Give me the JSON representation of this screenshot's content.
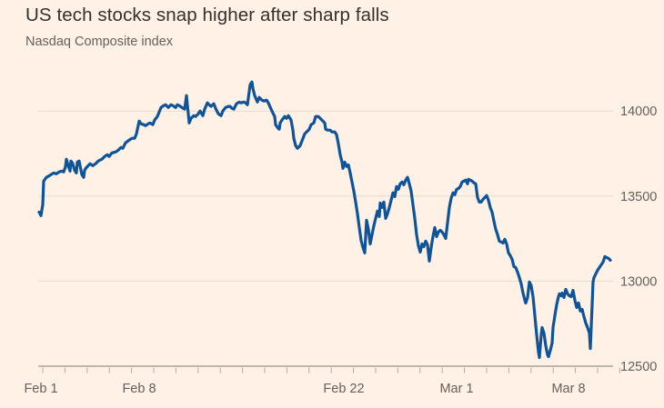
{
  "title": "US tech stocks snap higher after sharp falls",
  "subtitle": "Nasdaq Composite index",
  "colors": {
    "background": "#FFF1E5",
    "line": "#0F5499",
    "title_text": "#33302E",
    "subtitle_text": "#66605C",
    "axis_label": "#66605C",
    "gridline": "#E8DCCF",
    "axis_line": "#A9A198",
    "tick": "#B3AAA0"
  },
  "chart_data": {
    "type": "line",
    "title": "US tech stocks snap higher after sharp falls",
    "subtitle": "Nasdaq Composite index",
    "grid": "horizontal",
    "legend": "none",
    "y_axis_side": "right",
    "ylim": [
      12450,
      14250
    ],
    "y_ticks": [
      12500,
      13000,
      13500,
      14000
    ],
    "x_tick_labels": [
      {
        "label": "Feb 1",
        "xpct": 0.32
      },
      {
        "label": "Feb 8",
        "xpct": 17.52
      },
      {
        "label": "Feb 22",
        "xpct": 53.34
      },
      {
        "label": "Mar 1",
        "xpct": 73.09
      },
      {
        "label": "Mar 8",
        "xpct": 92.68
      }
    ],
    "series": [
      {
        "name": "Nasdaq Composite index",
        "points": [
          [
            0,
            13406
          ],
          [
            0.32,
            13385
          ],
          [
            0.64,
            13449
          ],
          [
            0.8,
            13588
          ],
          [
            1.27,
            13610
          ],
          [
            2.07,
            13626
          ],
          [
            2.55,
            13636
          ],
          [
            3.03,
            13631
          ],
          [
            3.5,
            13642
          ],
          [
            3.98,
            13647
          ],
          [
            4.3,
            13642
          ],
          [
            4.62,
            13674
          ],
          [
            4.78,
            13717
          ],
          [
            5.1,
            13679
          ],
          [
            5.41,
            13647
          ],
          [
            5.57,
            13706
          ],
          [
            5.89,
            13690
          ],
          [
            6.21,
            13652
          ],
          [
            6.53,
            13636
          ],
          [
            6.69,
            13700
          ],
          [
            7.01,
            13706
          ],
          [
            7.17,
            13679
          ],
          [
            7.48,
            13626
          ],
          [
            7.8,
            13610
          ],
          [
            7.96,
            13652
          ],
          [
            8.28,
            13668
          ],
          [
            8.6,
            13679
          ],
          [
            8.92,
            13690
          ],
          [
            9.39,
            13679
          ],
          [
            9.87,
            13690
          ],
          [
            10.35,
            13706
          ],
          [
            10.99,
            13717
          ],
          [
            11.46,
            13733
          ],
          [
            11.94,
            13743
          ],
          [
            12.26,
            13733
          ],
          [
            12.74,
            13754
          ],
          [
            13.38,
            13759
          ],
          [
            13.85,
            13770
          ],
          [
            14.33,
            13786
          ],
          [
            14.65,
            13781
          ],
          [
            15.13,
            13813
          ],
          [
            15.76,
            13829
          ],
          [
            16.24,
            13840
          ],
          [
            16.72,
            13840
          ],
          [
            17.04,
            13866
          ],
          [
            17.52,
            13941
          ],
          [
            17.83,
            13925
          ],
          [
            18.31,
            13920
          ],
          [
            18.63,
            13914
          ],
          [
            19.11,
            13925
          ],
          [
            19.43,
            13930
          ],
          [
            19.9,
            13920
          ],
          [
            20.22,
            13947
          ],
          [
            20.7,
            13968
          ],
          [
            21.34,
            14021
          ],
          [
            21.82,
            14032
          ],
          [
            22.13,
            14037
          ],
          [
            22.61,
            14021
          ],
          [
            23.09,
            14037
          ],
          [
            23.41,
            14032
          ],
          [
            23.89,
            14021
          ],
          [
            24.2,
            14037
          ],
          [
            24.52,
            14032
          ],
          [
            25,
            14021
          ],
          [
            25.48,
            14011
          ],
          [
            25.8,
            14091
          ],
          [
            26.11,
            13984
          ],
          [
            26.27,
            13930
          ],
          [
            26.59,
            13957
          ],
          [
            27.07,
            13973
          ],
          [
            27.39,
            13968
          ],
          [
            27.87,
            13984
          ],
          [
            28.18,
            14000
          ],
          [
            28.66,
            13973
          ],
          [
            28.98,
            14011
          ],
          [
            29.46,
            14048
          ],
          [
            29.78,
            14037
          ],
          [
            30.1,
            14027
          ],
          [
            30.57,
            14043
          ],
          [
            30.89,
            14016
          ],
          [
            31.37,
            13984
          ],
          [
            31.85,
            13973
          ],
          [
            32.17,
            14000
          ],
          [
            32.64,
            14021
          ],
          [
            33.12,
            14027
          ],
          [
            33.44,
            14027
          ],
          [
            33.76,
            14016
          ],
          [
            34.08,
            14011
          ],
          [
            34.55,
            14043
          ],
          [
            35.03,
            14053
          ],
          [
            35.35,
            14048
          ],
          [
            35.83,
            14053
          ],
          [
            36.15,
            14048
          ],
          [
            36.46,
            14037
          ],
          [
            36.94,
            14155
          ],
          [
            37.26,
            14171
          ],
          [
            37.42,
            14134
          ],
          [
            37.74,
            14091
          ],
          [
            38.22,
            14053
          ],
          [
            38.54,
            14080
          ],
          [
            39.01,
            14064
          ],
          [
            39.33,
            14059
          ],
          [
            39.81,
            14064
          ],
          [
            40.13,
            14048
          ],
          [
            40.61,
            14011
          ],
          [
            40.92,
            13989
          ],
          [
            41.24,
            13968
          ],
          [
            41.4,
            13920
          ],
          [
            41.72,
            13904
          ],
          [
            42.04,
            13893
          ],
          [
            42.2,
            13930
          ],
          [
            42.52,
            13947
          ],
          [
            43,
            13968
          ],
          [
            43.31,
            13957
          ],
          [
            43.63,
            13973
          ],
          [
            44.11,
            13947
          ],
          [
            44.43,
            13888
          ],
          [
            44.59,
            13840
          ],
          [
            44.9,
            13797
          ],
          [
            45.22,
            13781
          ],
          [
            45.7,
            13797
          ],
          [
            46.02,
            13824
          ],
          [
            46.5,
            13866
          ],
          [
            46.82,
            13877
          ],
          [
            47.29,
            13893
          ],
          [
            47.61,
            13920
          ],
          [
            48.09,
            13930
          ],
          [
            48.41,
            13968
          ],
          [
            48.89,
            13968
          ],
          [
            49.2,
            13957
          ],
          [
            49.68,
            13941
          ],
          [
            50,
            13930
          ],
          [
            50.16,
            13893
          ],
          [
            50.48,
            13888
          ],
          [
            50.96,
            13888
          ],
          [
            51.27,
            13877
          ],
          [
            51.75,
            13877
          ],
          [
            52.07,
            13861
          ],
          [
            52.39,
            13807
          ],
          [
            52.71,
            13743
          ],
          [
            53.03,
            13700
          ],
          [
            53.18,
            13663
          ],
          [
            53.5,
            13700
          ],
          [
            53.82,
            13674
          ],
          [
            54.14,
            13684
          ],
          [
            54.46,
            13636
          ],
          [
            54.78,
            13583
          ],
          [
            55.1,
            13529
          ],
          [
            55.41,
            13465
          ],
          [
            55.73,
            13396
          ],
          [
            56.05,
            13315
          ],
          [
            56.37,
            13240
          ],
          [
            56.69,
            13198
          ],
          [
            57.01,
            13166
          ],
          [
            57.32,
            13358
          ],
          [
            57.64,
            13305
          ],
          [
            57.96,
            13219
          ],
          [
            58.28,
            13273
          ],
          [
            58.6,
            13326
          ],
          [
            58.92,
            13369
          ],
          [
            59.24,
            13412
          ],
          [
            59.55,
            13380
          ],
          [
            59.71,
            13460
          ],
          [
            60.03,
            13433
          ],
          [
            60.35,
            13465
          ],
          [
            60.67,
            13369
          ],
          [
            60.99,
            13396
          ],
          [
            61.31,
            13433
          ],
          [
            61.62,
            13476
          ],
          [
            61.94,
            13519
          ],
          [
            62.26,
            13497
          ],
          [
            62.58,
            13556
          ],
          [
            62.9,
            13540
          ],
          [
            63.22,
            13572
          ],
          [
            63.54,
            13583
          ],
          [
            63.85,
            13567
          ],
          [
            64.17,
            13594
          ],
          [
            64.49,
            13610
          ],
          [
            64.81,
            13572
          ],
          [
            65.13,
            13529
          ],
          [
            65.45,
            13449
          ],
          [
            65.76,
            13369
          ],
          [
            66.08,
            13273
          ],
          [
            66.4,
            13208
          ],
          [
            66.72,
            13171
          ],
          [
            67.04,
            13219
          ],
          [
            67.36,
            13203
          ],
          [
            67.68,
            13235
          ],
          [
            67.99,
            13214
          ],
          [
            68.31,
            13118
          ],
          [
            68.63,
            13198
          ],
          [
            68.95,
            13262
          ],
          [
            69.27,
            13315
          ],
          [
            69.59,
            13262
          ],
          [
            69.9,
            13289
          ],
          [
            70.22,
            13299
          ],
          [
            70.54,
            13289
          ],
          [
            70.86,
            13273
          ],
          [
            71.18,
            13251
          ],
          [
            71.5,
            13342
          ],
          [
            71.82,
            13433
          ],
          [
            72.13,
            13487
          ],
          [
            72.45,
            13519
          ],
          [
            72.77,
            13508
          ],
          [
            73.09,
            13540
          ],
          [
            73.41,
            13545
          ],
          [
            73.73,
            13556
          ],
          [
            74.04,
            13583
          ],
          [
            74.36,
            13588
          ],
          [
            74.68,
            13594
          ],
          [
            75,
            13572
          ],
          [
            75.16,
            13599
          ],
          [
            75.48,
            13594
          ],
          [
            75.8,
            13588
          ],
          [
            76.11,
            13578
          ],
          [
            76.43,
            13572
          ],
          [
            76.75,
            13492
          ],
          [
            77.07,
            13465
          ],
          [
            77.39,
            13465
          ],
          [
            77.71,
            13481
          ],
          [
            78.03,
            13492
          ],
          [
            78.34,
            13503
          ],
          [
            78.66,
            13476
          ],
          [
            78.98,
            13433
          ],
          [
            79.3,
            13406
          ],
          [
            79.62,
            13353
          ],
          [
            79.94,
            13305
          ],
          [
            80.25,
            13273
          ],
          [
            80.57,
            13235
          ],
          [
            80.89,
            13230
          ],
          [
            81.21,
            13224
          ],
          [
            81.53,
            13246
          ],
          [
            81.85,
            13219
          ],
          [
            82.17,
            13166
          ],
          [
            82.48,
            13150
          ],
          [
            82.8,
            13128
          ],
          [
            83.12,
            13086
          ],
          [
            83.44,
            13080
          ],
          [
            83.76,
            13053
          ],
          [
            84.08,
            13021
          ],
          [
            84.39,
            12984
          ],
          [
            84.71,
            12930
          ],
          [
            85.03,
            12888
          ],
          [
            85.19,
            12871
          ],
          [
            85.51,
            12904
          ],
          [
            85.83,
            12995
          ],
          [
            86.15,
            12973
          ],
          [
            86.46,
            12909
          ],
          [
            86.78,
            12797
          ],
          [
            87.1,
            12684
          ],
          [
            87.42,
            12583
          ],
          [
            87.58,
            12551
          ],
          [
            87.9,
            12684
          ],
          [
            88.06,
            12727
          ],
          [
            88.38,
            12695
          ],
          [
            88.69,
            12620
          ],
          [
            89.01,
            12567
          ],
          [
            89.17,
            12556
          ],
          [
            89.49,
            12593
          ],
          [
            89.81,
            12636
          ],
          [
            89.97,
            12727
          ],
          [
            90.29,
            12797
          ],
          [
            90.61,
            12861
          ],
          [
            90.92,
            12909
          ],
          [
            91.08,
            12925
          ],
          [
            91.4,
            12914
          ],
          [
            91.56,
            12930
          ],
          [
            91.88,
            12904
          ],
          [
            92.2,
            12952
          ],
          [
            92.52,
            12925
          ],
          [
            92.83,
            12914
          ],
          [
            93.15,
            12909
          ],
          [
            93.47,
            12946
          ],
          [
            93.79,
            12888
          ],
          [
            94.11,
            12845
          ],
          [
            94.43,
            12872
          ],
          [
            94.75,
            12824
          ],
          [
            95.06,
            12834
          ],
          [
            95.38,
            12791
          ],
          [
            95.7,
            12754
          ],
          [
            96.02,
            12727
          ],
          [
            96.34,
            12695
          ],
          [
            96.5,
            12604
          ],
          [
            96.82,
            12861
          ],
          [
            96.97,
            12995
          ],
          [
            97.13,
            13021
          ],
          [
            97.45,
            13043
          ],
          [
            97.77,
            13064
          ],
          [
            98.09,
            13080
          ],
          [
            98.41,
            13096
          ],
          [
            98.73,
            13112
          ],
          [
            99.04,
            13144
          ],
          [
            99.36,
            13139
          ],
          [
            99.68,
            13134
          ],
          [
            100,
            13123
          ]
        ]
      }
    ]
  }
}
